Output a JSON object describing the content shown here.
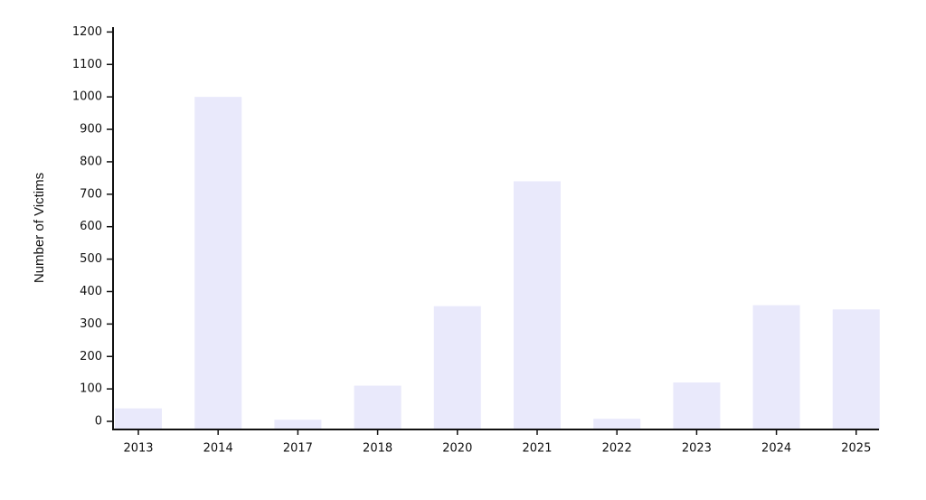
{
  "chart_data": {
    "type": "bar",
    "y_label": "Number of Victims",
    "categories": [
      "2013",
      "2014",
      "2017",
      "2018",
      "2020",
      "2021",
      "2022",
      "2023",
      "2024",
      "2025"
    ],
    "values": [
      40,
      1000,
      5,
      110,
      355,
      740,
      8,
      120,
      358,
      345
    ],
    "color": "#e9e9fb",
    "ylim": [
      -25,
      1215
    ],
    "yticks": [
      0,
      100,
      200,
      300,
      400,
      500,
      600,
      700,
      800,
      900,
      1000,
      1100,
      1200
    ]
  }
}
